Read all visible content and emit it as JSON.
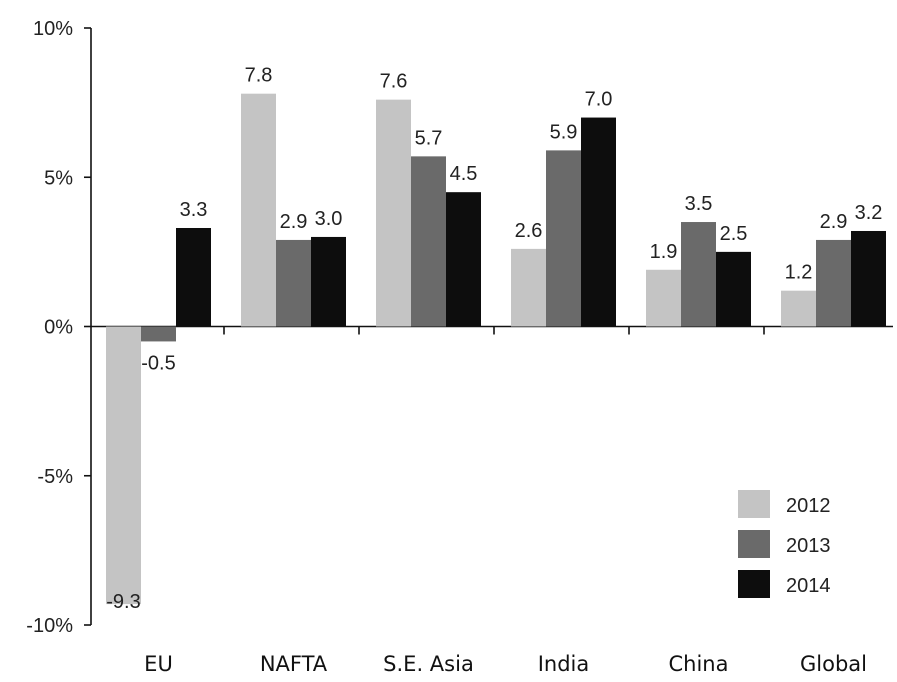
{
  "chart_data": {
    "type": "bar",
    "categories": [
      "EU",
      "NAFTA",
      "S.E. Asia",
      "India",
      "China",
      "Global"
    ],
    "series": [
      {
        "name": "2012",
        "color": "#c4c4c4",
        "values": [
          -9.3,
          7.8,
          7.6,
          2.6,
          1.9,
          1.2
        ],
        "labels": [
          "-9.3",
          "7.8",
          "7.6",
          "2.6",
          "1.9",
          "1.2"
        ]
      },
      {
        "name": "2013",
        "color": "#6a6a6a",
        "values": [
          -0.5,
          2.9,
          5.7,
          5.9,
          3.5,
          2.9
        ],
        "labels": [
          "-0.5",
          "2.9",
          "5.7",
          "5.9",
          "3.5",
          "2.9"
        ]
      },
      {
        "name": "2014",
        "color": "#0d0d0d",
        "values": [
          3.3,
          3.0,
          4.5,
          7.0,
          2.5,
          3.2
        ],
        "labels": [
          "3.3",
          "3.0",
          "4.5",
          "7.0",
          "2.5",
          "3.2"
        ]
      }
    ],
    "ylim": [
      -10,
      10
    ],
    "yticks": [
      10,
      5,
      0,
      -5,
      -10
    ],
    "ytick_labels": [
      "10%",
      "5%",
      "0%",
      "-5%",
      "-10%"
    ],
    "title": "",
    "xlabel": "",
    "ylabel": "",
    "grid": false,
    "legend_position": "bottom-right"
  }
}
